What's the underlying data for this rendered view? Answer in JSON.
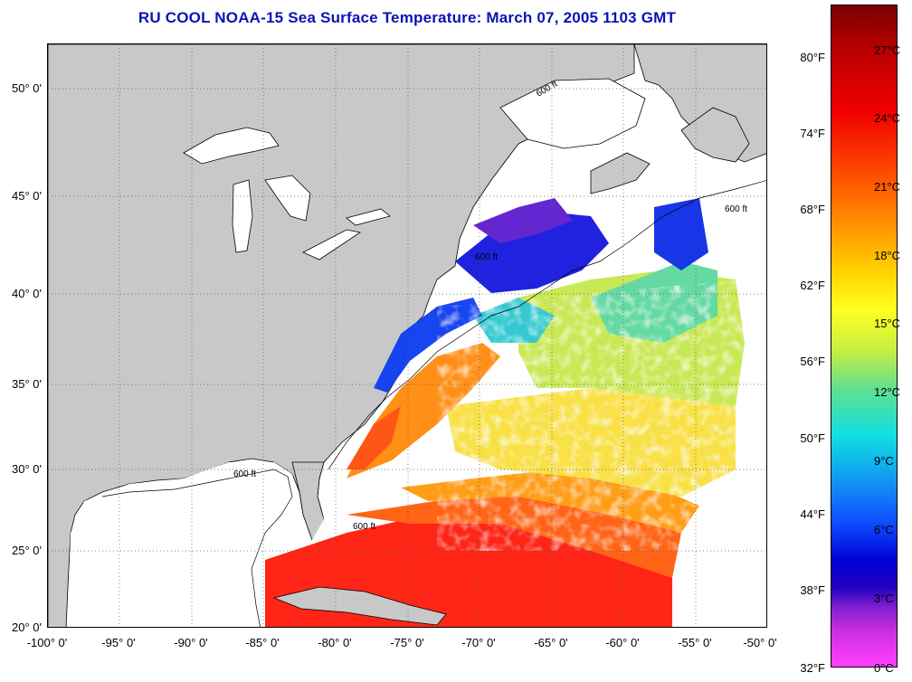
{
  "title": "RU COOL  NOAA-15  Sea Surface Temperature:  March 07, 2005 1103 GMT",
  "lat_labels": [
    "50° 0'",
    "45° 0'",
    "40° 0'",
    "35° 0'",
    "30° 0'",
    "25° 0'",
    "20° 0'"
  ],
  "lon_labels": [
    "-100° 0'",
    "-95° 0'",
    "-90° 0'",
    "-85° 0'",
    "-80° 0'",
    "-75° 0'",
    "-70° 0'",
    "-65° 0'",
    "-60° 0'",
    "-55° 0'",
    "-50° 0'"
  ],
  "isobath_label": "600 ft",
  "colorbar": {
    "fahrenheit": [
      "80°F",
      "74°F",
      "68°F",
      "62°F",
      "56°F",
      "50°F",
      "44°F",
      "38°F",
      "32°F"
    ],
    "celsius": [
      "27°C",
      "24°C",
      "21°C",
      "18°C",
      "15°C",
      "12°C",
      "9°C",
      "6°C",
      "3°C",
      "0°C"
    ]
  },
  "colors": {
    "title": "#0a14b4",
    "land": "#c8c8c8"
  }
}
